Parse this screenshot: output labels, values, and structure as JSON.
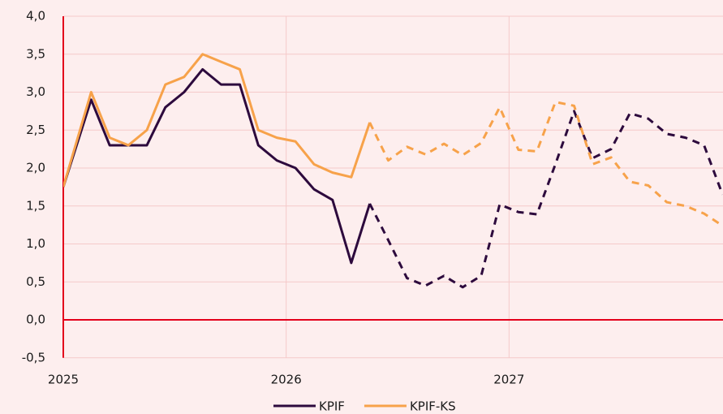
{
  "chart_data": {
    "type": "line",
    "x": [
      2025.0,
      2025.125,
      2025.208,
      2025.292,
      2025.375,
      2025.458,
      2025.542,
      2025.625,
      2025.708,
      2025.792,
      2025.875,
      2025.958,
      2026.042,
      2026.125,
      2026.208,
      2026.292,
      2026.375,
      2026.458,
      2026.542,
      2026.625,
      2026.708,
      2026.792,
      2026.875,
      2026.958,
      2027.042,
      2027.125,
      2027.208,
      2027.292,
      2027.375,
      2027.458,
      2027.542,
      2027.625,
      2027.708,
      2027.792,
      2027.875,
      2027.958
    ],
    "series": [
      {
        "name": "KPIF",
        "color": "#2d0a3d",
        "dashed_from": 2026.375,
        "values": [
          1.75,
          2.9,
          2.3,
          2.3,
          2.3,
          2.8,
          3.0,
          3.3,
          3.1,
          3.1,
          2.3,
          2.1,
          2.0,
          1.72,
          1.58,
          0.75,
          1.53,
          1.05,
          0.55,
          0.45,
          0.58,
          0.43,
          0.58,
          1.52,
          1.42,
          1.39,
          2.05,
          2.75,
          2.13,
          2.25,
          2.72,
          2.65,
          2.45,
          2.4,
          2.3,
          1.65
        ]
      },
      {
        "name": "KPIF-KS",
        "color": "#f7a24a",
        "dashed_from": 2026.375,
        "values": [
          1.75,
          3.0,
          2.4,
          2.3,
          2.5,
          3.1,
          3.2,
          3.5,
          3.4,
          3.3,
          2.5,
          2.4,
          2.35,
          2.05,
          1.94,
          1.88,
          2.6,
          2.1,
          2.28,
          2.18,
          2.32,
          2.17,
          2.33,
          2.8,
          2.24,
          2.22,
          2.87,
          2.82,
          2.05,
          2.14,
          1.82,
          1.77,
          1.55,
          1.5,
          1.4,
          1.24
        ]
      }
    ],
    "xlim": [
      2025,
      2027.96
    ],
    "xticks": [
      2025,
      2026,
      2027
    ],
    "ylim": [
      -0.5,
      4.0
    ],
    "yticks": [
      {
        "value": -0.5,
        "label": "-0,5"
      },
      {
        "value": 0,
        "label": "0,0"
      },
      {
        "value": 0.5,
        "label": "0,5"
      },
      {
        "value": 1.0,
        "label": "1,0"
      },
      {
        "value": 1.5,
        "label": "1,5"
      },
      {
        "value": 2.0,
        "label": "2,0"
      },
      {
        "value": 2.5,
        "label": "2,5"
      },
      {
        "value": 3.0,
        "label": "3,0"
      },
      {
        "value": 3.5,
        "label": "3,5"
      },
      {
        "value": 4.0,
        "label": "4,0"
      }
    ],
    "grid": true,
    "legend": "bottom"
  }
}
